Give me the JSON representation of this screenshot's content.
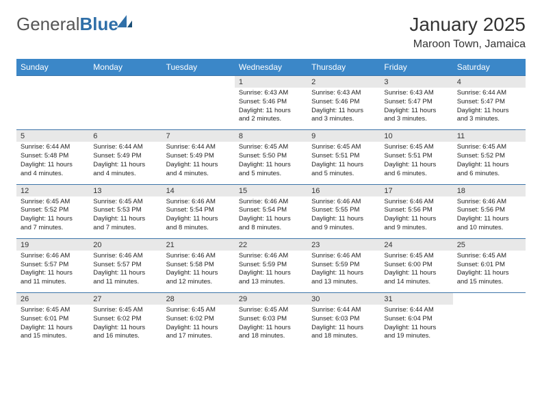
{
  "logo": {
    "text_part1": "General",
    "text_part2": "Blue"
  },
  "title": "January 2025",
  "subtitle": "Maroon Town, Jamaica",
  "colors": {
    "header_bg": "#3b87c8",
    "header_text": "#ffffff",
    "daynum_bg": "#e8e8e8",
    "row_border": "#3b73a8",
    "text": "#222222"
  },
  "day_headers": [
    "Sunday",
    "Monday",
    "Tuesday",
    "Wednesday",
    "Thursday",
    "Friday",
    "Saturday"
  ],
  "weeks": [
    [
      null,
      null,
      null,
      {
        "n": "1",
        "sunrise": "6:43 AM",
        "sunset": "5:46 PM",
        "daylight": "11 hours and 2 minutes."
      },
      {
        "n": "2",
        "sunrise": "6:43 AM",
        "sunset": "5:46 PM",
        "daylight": "11 hours and 3 minutes."
      },
      {
        "n": "3",
        "sunrise": "6:43 AM",
        "sunset": "5:47 PM",
        "daylight": "11 hours and 3 minutes."
      },
      {
        "n": "4",
        "sunrise": "6:44 AM",
        "sunset": "5:47 PM",
        "daylight": "11 hours and 3 minutes."
      }
    ],
    [
      {
        "n": "5",
        "sunrise": "6:44 AM",
        "sunset": "5:48 PM",
        "daylight": "11 hours and 4 minutes."
      },
      {
        "n": "6",
        "sunrise": "6:44 AM",
        "sunset": "5:49 PM",
        "daylight": "11 hours and 4 minutes."
      },
      {
        "n": "7",
        "sunrise": "6:44 AM",
        "sunset": "5:49 PM",
        "daylight": "11 hours and 4 minutes."
      },
      {
        "n": "8",
        "sunrise": "6:45 AM",
        "sunset": "5:50 PM",
        "daylight": "11 hours and 5 minutes."
      },
      {
        "n": "9",
        "sunrise": "6:45 AM",
        "sunset": "5:51 PM",
        "daylight": "11 hours and 5 minutes."
      },
      {
        "n": "10",
        "sunrise": "6:45 AM",
        "sunset": "5:51 PM",
        "daylight": "11 hours and 6 minutes."
      },
      {
        "n": "11",
        "sunrise": "6:45 AM",
        "sunset": "5:52 PM",
        "daylight": "11 hours and 6 minutes."
      }
    ],
    [
      {
        "n": "12",
        "sunrise": "6:45 AM",
        "sunset": "5:52 PM",
        "daylight": "11 hours and 7 minutes."
      },
      {
        "n": "13",
        "sunrise": "6:45 AM",
        "sunset": "5:53 PM",
        "daylight": "11 hours and 7 minutes."
      },
      {
        "n": "14",
        "sunrise": "6:46 AM",
        "sunset": "5:54 PM",
        "daylight": "11 hours and 8 minutes."
      },
      {
        "n": "15",
        "sunrise": "6:46 AM",
        "sunset": "5:54 PM",
        "daylight": "11 hours and 8 minutes."
      },
      {
        "n": "16",
        "sunrise": "6:46 AM",
        "sunset": "5:55 PM",
        "daylight": "11 hours and 9 minutes."
      },
      {
        "n": "17",
        "sunrise": "6:46 AM",
        "sunset": "5:56 PM",
        "daylight": "11 hours and 9 minutes."
      },
      {
        "n": "18",
        "sunrise": "6:46 AM",
        "sunset": "5:56 PM",
        "daylight": "11 hours and 10 minutes."
      }
    ],
    [
      {
        "n": "19",
        "sunrise": "6:46 AM",
        "sunset": "5:57 PM",
        "daylight": "11 hours and 11 minutes."
      },
      {
        "n": "20",
        "sunrise": "6:46 AM",
        "sunset": "5:57 PM",
        "daylight": "11 hours and 11 minutes."
      },
      {
        "n": "21",
        "sunrise": "6:46 AM",
        "sunset": "5:58 PM",
        "daylight": "11 hours and 12 minutes."
      },
      {
        "n": "22",
        "sunrise": "6:46 AM",
        "sunset": "5:59 PM",
        "daylight": "11 hours and 13 minutes."
      },
      {
        "n": "23",
        "sunrise": "6:46 AM",
        "sunset": "5:59 PM",
        "daylight": "11 hours and 13 minutes."
      },
      {
        "n": "24",
        "sunrise": "6:45 AM",
        "sunset": "6:00 PM",
        "daylight": "11 hours and 14 minutes."
      },
      {
        "n": "25",
        "sunrise": "6:45 AM",
        "sunset": "6:01 PM",
        "daylight": "11 hours and 15 minutes."
      }
    ],
    [
      {
        "n": "26",
        "sunrise": "6:45 AM",
        "sunset": "6:01 PM",
        "daylight": "11 hours and 15 minutes."
      },
      {
        "n": "27",
        "sunrise": "6:45 AM",
        "sunset": "6:02 PM",
        "daylight": "11 hours and 16 minutes."
      },
      {
        "n": "28",
        "sunrise": "6:45 AM",
        "sunset": "6:02 PM",
        "daylight": "11 hours and 17 minutes."
      },
      {
        "n": "29",
        "sunrise": "6:45 AM",
        "sunset": "6:03 PM",
        "daylight": "11 hours and 18 minutes."
      },
      {
        "n": "30",
        "sunrise": "6:44 AM",
        "sunset": "6:03 PM",
        "daylight": "11 hours and 18 minutes."
      },
      {
        "n": "31",
        "sunrise": "6:44 AM",
        "sunset": "6:04 PM",
        "daylight": "11 hours and 19 minutes."
      },
      null
    ]
  ],
  "labels": {
    "sunrise": "Sunrise:",
    "sunset": "Sunset:",
    "daylight": "Daylight:"
  }
}
